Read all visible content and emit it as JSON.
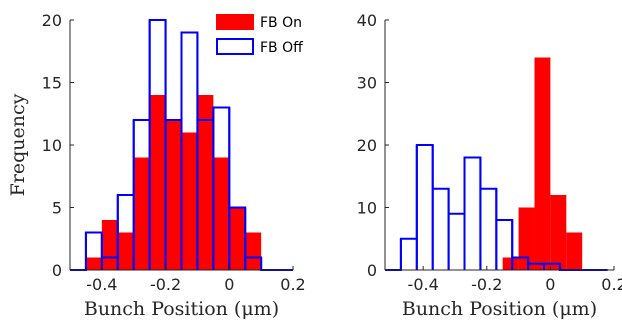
{
  "chart_data": [
    {
      "type": "histogram",
      "title": "",
      "xlabel": "Bunch Position (μm)",
      "ylabel": "Frequency",
      "xlim": [
        -0.5,
        0.2
      ],
      "ylim": [
        0,
        20
      ],
      "xticks": [
        -0.4,
        -0.2,
        0,
        0.2
      ],
      "yticks": [
        0,
        5,
        10,
        15,
        20
      ],
      "grid": false,
      "legend": {
        "position": "top-right",
        "entries": [
          "FB On",
          "FB Off"
        ]
      },
      "series": [
        {
          "name": "FB On",
          "style": "filled",
          "color": "#ff0000",
          "bin_width": 0.05,
          "bin_starts": [
            -0.45,
            -0.4,
            -0.35,
            -0.3,
            -0.25,
            -0.2,
            -0.15,
            -0.1,
            -0.05,
            0,
            0.05
          ],
          "values": [
            1,
            4,
            3,
            9,
            14,
            12,
            11,
            14,
            9,
            5,
            3
          ]
        },
        {
          "name": "FB Off",
          "style": "outline",
          "color": "#0000ff",
          "bin_width": 0.05,
          "bin_starts": [
            -0.5,
            -0.45,
            -0.4,
            -0.35,
            -0.3,
            -0.25,
            -0.2,
            -0.15,
            -0.1,
            -0.05,
            0,
            0.05,
            0.1,
            0.15
          ],
          "values": [
            0,
            3,
            1,
            6,
            12,
            20,
            12,
            19,
            12,
            13,
            5,
            1,
            0,
            0
          ]
        }
      ]
    },
    {
      "type": "histogram",
      "title": "",
      "xlabel": "Bunch Position (μm)",
      "ylabel": "",
      "xlim": [
        -0.52,
        0.2
      ],
      "ylim": [
        0,
        40
      ],
      "xticks": [
        -0.4,
        -0.2,
        0,
        0.2
      ],
      "yticks": [
        0,
        10,
        20,
        30,
        40
      ],
      "grid": false,
      "series": [
        {
          "name": "FB On",
          "style": "filled",
          "color": "#ff0000",
          "bin_width": 0.05,
          "bin_starts": [
            -0.15,
            -0.1,
            -0.05,
            0,
            0.05
          ],
          "values": [
            2,
            10,
            34,
            12,
            6
          ]
        },
        {
          "name": "FB Off",
          "style": "outline",
          "color": "#0000ff",
          "bin_width": 0.05,
          "bin_starts": [
            -0.52,
            -0.47,
            -0.42,
            -0.37,
            -0.32,
            -0.27,
            -0.22,
            -0.17,
            -0.12,
            -0.07,
            -0.02,
            0.03,
            0.08,
            0.13
          ],
          "values": [
            0,
            5,
            20,
            13,
            9,
            18,
            13,
            8,
            2,
            1,
            1,
            0,
            0,
            0
          ]
        }
      ]
    }
  ]
}
